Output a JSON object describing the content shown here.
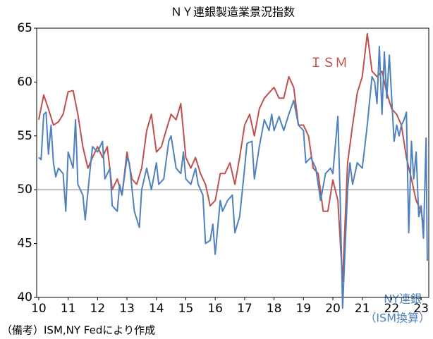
{
  "chart_data": {
    "type": "line",
    "title": "ＮＹ連銀製造業景況指数",
    "annotations": [
      "ＩＳＭ",
      "NY連銀",
      "（ISM換算）"
    ],
    "note": "（備考）ISM,NY Fedにより作成",
    "xlim": [
      9.93,
      23.26
    ],
    "xticks": [
      10,
      11,
      12,
      13,
      14,
      15,
      16,
      17,
      18,
      19,
      20,
      21,
      22,
      23
    ],
    "ylim": [
      40,
      65
    ],
    "yticks": [
      40,
      45,
      50,
      55,
      60,
      65
    ],
    "reference_line": 50,
    "series": [
      {
        "name": "ＩＳＭ",
        "color": "#c0504d",
        "x": [
          10.0,
          10.17,
          10.33,
          10.5,
          10.67,
          10.83,
          11.0,
          11.17,
          11.33,
          11.5,
          11.67,
          11.83,
          12.0,
          12.17,
          12.33,
          12.5,
          12.67,
          12.83,
          13.0,
          13.17,
          13.33,
          13.5,
          13.67,
          13.83,
          14.0,
          14.17,
          14.33,
          14.5,
          14.67,
          14.83,
          15.0,
          15.17,
          15.33,
          15.5,
          15.67,
          15.83,
          16.0,
          16.17,
          16.33,
          16.5,
          16.67,
          16.83,
          17.0,
          17.17,
          17.33,
          17.5,
          17.67,
          17.83,
          18.0,
          18.17,
          18.33,
          18.5,
          18.67,
          18.83,
          19.0,
          19.17,
          19.33,
          19.5,
          19.67,
          19.83,
          20.0,
          20.17,
          20.33,
          20.5,
          20.67,
          20.83,
          21.0,
          21.17,
          21.33,
          21.5,
          21.67,
          21.83,
          22.0,
          22.17,
          22.33,
          22.5,
          22.67,
          22.83,
          23.0,
          23.07
        ],
        "values": [
          56.5,
          58.8,
          57.5,
          56,
          56.3,
          57,
          59.1,
          59.2,
          57,
          54,
          52,
          53,
          54,
          53,
          54,
          50,
          51,
          49.5,
          53.5,
          51,
          50.5,
          52,
          55.5,
          57,
          53.5,
          54,
          55.5,
          57,
          56.5,
          58,
          53,
          52,
          53,
          51.5,
          50.5,
          48.5,
          49,
          51.5,
          51.5,
          52.5,
          50.5,
          53,
          56,
          57,
          55,
          57.5,
          58.5,
          59,
          59.5,
          58.5,
          58.5,
          60.5,
          59.5,
          56,
          56,
          55,
          52,
          51.5,
          48,
          48,
          50.9,
          49,
          41.5,
          52.5,
          56,
          59,
          60.5,
          64.5,
          61,
          60.5,
          61,
          59,
          57.5,
          57,
          56,
          53,
          51,
          49,
          48,
          46.9
        ]
      },
      {
        "name": "NY連銀",
        "color": "#4f81bd",
        "x": [
          10.0,
          10.08,
          10.17,
          10.25,
          10.33,
          10.42,
          10.5,
          10.58,
          10.67,
          10.83,
          10.92,
          11.0,
          11.17,
          11.25,
          11.33,
          11.5,
          11.58,
          11.75,
          11.83,
          12.0,
          12.17,
          12.25,
          12.42,
          12.5,
          12.67,
          12.75,
          12.83,
          13.0,
          13.08,
          13.25,
          13.42,
          13.5,
          13.67,
          13.83,
          14.0,
          14.08,
          14.25,
          14.42,
          14.5,
          14.67,
          14.83,
          14.92,
          15.0,
          15.17,
          15.33,
          15.42,
          15.58,
          15.67,
          15.83,
          15.92,
          16.0,
          16.17,
          16.25,
          16.42,
          16.58,
          16.67,
          16.83,
          17.0,
          17.08,
          17.25,
          17.33,
          17.5,
          17.67,
          17.83,
          17.92,
          18.0,
          18.17,
          18.33,
          18.5,
          18.67,
          18.83,
          19.0,
          19.08,
          19.25,
          19.42,
          19.58,
          19.75,
          19.92,
          20.0,
          20.17,
          20.25,
          20.33,
          20.5,
          20.58,
          20.67,
          20.83,
          21.0,
          21.17,
          21.33,
          21.42,
          21.5,
          21.58,
          21.67,
          21.75,
          21.83,
          21.92,
          22.0,
          22.08,
          22.17,
          22.25,
          22.33,
          22.42,
          22.5,
          22.58,
          22.67,
          22.75,
          22.83,
          22.92,
          23.0,
          23.08,
          23.17,
          23.21
        ],
        "values": [
          53,
          52.8,
          57,
          57.2,
          53.3,
          56,
          52.5,
          51.2,
          52,
          51.5,
          48,
          53.5,
          52,
          56.5,
          50.5,
          49.5,
          47.2,
          52,
          54,
          53.5,
          54.5,
          51,
          52,
          48.5,
          48,
          50.5,
          49.5,
          53,
          52.5,
          48,
          46.5,
          50,
          52,
          50,
          52.5,
          50.5,
          51,
          54.5,
          55,
          52,
          51.5,
          53.5,
          51,
          50.5,
          52,
          50.5,
          49.5,
          45,
          45.3,
          46.8,
          44,
          49,
          48,
          49,
          49.5,
          46,
          47.5,
          52,
          54.3,
          54.5,
          51,
          54,
          56.5,
          55.5,
          57,
          55.5,
          56.8,
          55.5,
          57,
          58.3,
          56,
          55.5,
          52.5,
          53,
          52,
          49,
          51.5,
          52,
          51.5,
          56.8,
          49,
          39,
          50,
          52.5,
          50.5,
          52.5,
          52,
          56,
          60.5,
          60,
          58,
          63.3,
          57,
          62.8,
          58.5,
          62.5,
          58.5,
          54.5,
          56,
          55,
          56,
          56.5,
          57.2,
          46,
          54.5,
          51,
          53.5,
          47.5,
          48.5,
          45.5,
          54.8,
          43.4
        ]
      }
    ]
  }
}
